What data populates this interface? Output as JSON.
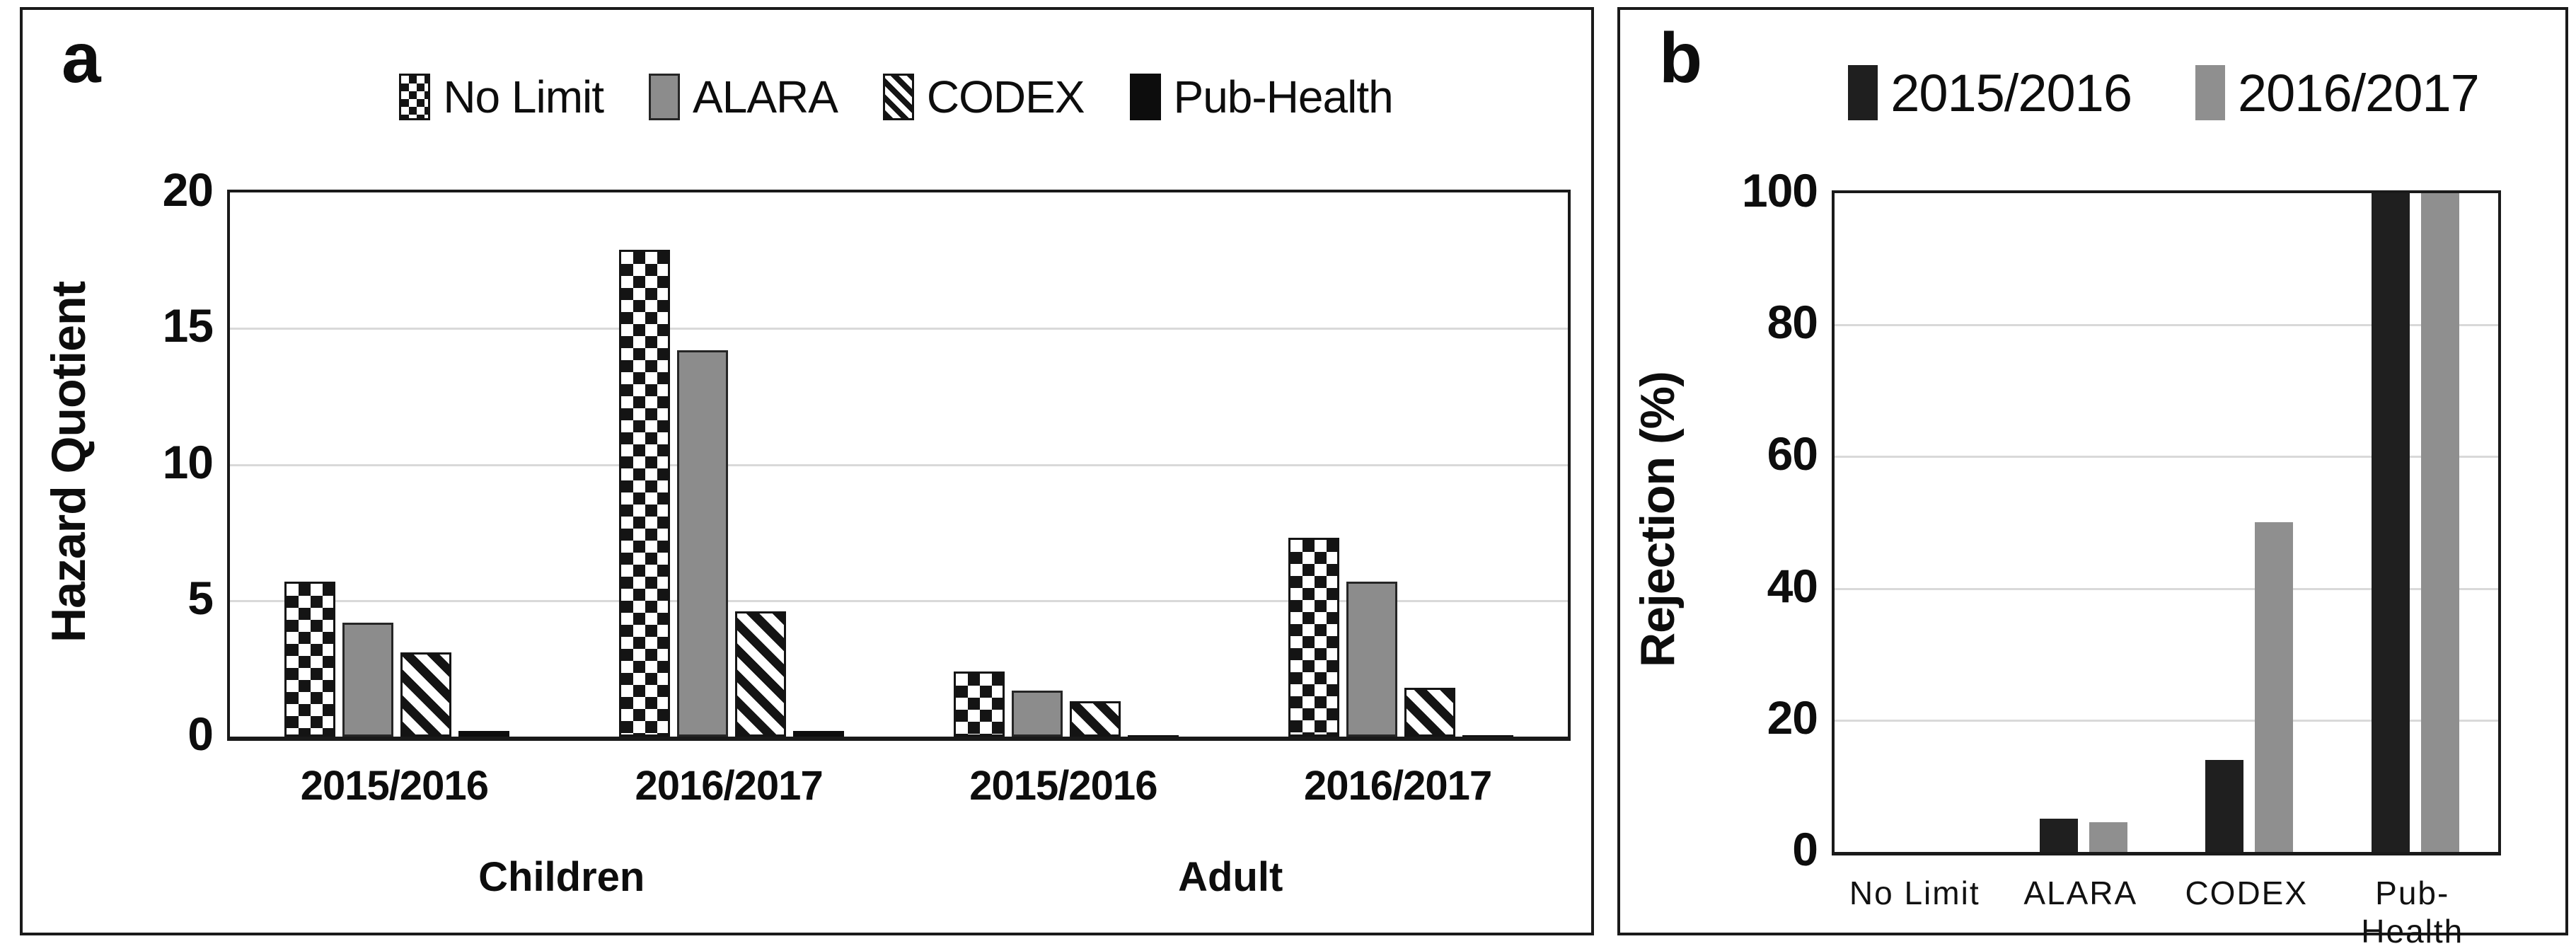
{
  "figure": {
    "background": "#ffffff",
    "grid_color": "#d9d9d9",
    "border_color": "#1a1a1a"
  },
  "chart_data": [
    {
      "panel_letter": "a",
      "type": "bar",
      "title": "",
      "xlabel": "",
      "ylabel": "Hazard Quotient",
      "ylim": [
        0,
        20
      ],
      "yticks": [
        0,
        5,
        10,
        15,
        20
      ],
      "grid": "horizontal",
      "legend_position": "top",
      "group_labels": [
        "2015/2016",
        "2016/2017",
        "2015/2016",
        "2016/2017"
      ],
      "cohort_labels": [
        "Children",
        "Adult"
      ],
      "series": [
        {
          "name": "No Limit",
          "pattern": "checker",
          "values": [
            5.7,
            17.9,
            2.4,
            7.3
          ]
        },
        {
          "name": "ALARA",
          "pattern": "solid-gray",
          "color": "#8c8c8c",
          "values": [
            4.2,
            14.2,
            1.7,
            5.7
          ]
        },
        {
          "name": "CODEX",
          "pattern": "diagonal-hatch",
          "values": [
            3.1,
            4.6,
            1.3,
            1.8
          ]
        },
        {
          "name": "Pub-Health",
          "pattern": "solid-black",
          "color": "#0d0d0d",
          "values": [
            0.2,
            0.2,
            0.05,
            0.05
          ]
        }
      ]
    },
    {
      "panel_letter": "b",
      "type": "bar",
      "title": "",
      "xlabel": "",
      "ylabel": "Rejection (%)",
      "ylim": [
        0,
        100
      ],
      "yticks": [
        0,
        20,
        40,
        60,
        80,
        100
      ],
      "grid": "horizontal",
      "legend_position": "top",
      "categories": [
        "No Limit",
        "ALARA",
        "CODEX",
        "Pub-Health"
      ],
      "series": [
        {
          "name": "2015/2016",
          "pattern": "plain",
          "color": "#1f1f1f",
          "values": [
            0,
            5,
            14,
            100
          ]
        },
        {
          "name": "2016/2017",
          "pattern": "plain",
          "color": "#8f8f8f",
          "values": [
            0,
            4.5,
            50,
            100
          ]
        }
      ]
    }
  ]
}
